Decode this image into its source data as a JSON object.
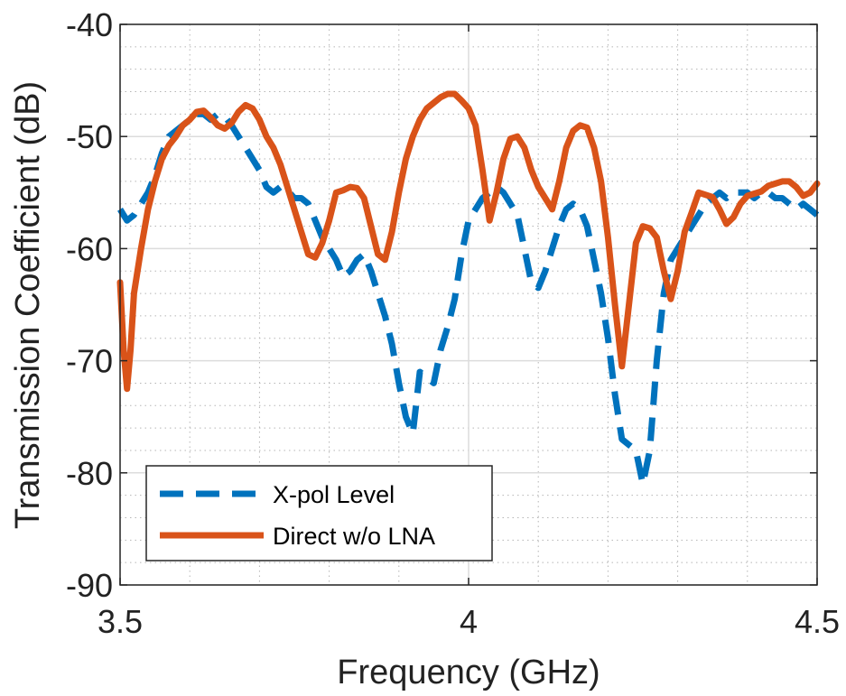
{
  "chart_data": {
    "type": "line",
    "title": "",
    "xlabel": "Frequency (GHz)",
    "ylabel": "Transmission Coefficient (dB)",
    "xlim": [
      3.5,
      4.5
    ],
    "ylim": [
      -90,
      -40
    ],
    "xticks": [
      3.5,
      4,
      4.5
    ],
    "xtick_labels": [
      "3.5",
      "4",
      "4.5"
    ],
    "yticks": [
      -90,
      -80,
      -70,
      -60,
      -50,
      -40
    ],
    "ytick_labels": [
      "-90",
      "-80",
      "-70",
      "-60",
      "-50",
      "-40"
    ],
    "grid": "major and minor",
    "legend_position": "bottom-left",
    "series": [
      {
        "name": "X-pol Level",
        "color": "#0072BD",
        "style": "dashed",
        "x": [
          3.5,
          3.51,
          3.52,
          3.53,
          3.54,
          3.55,
          3.56,
          3.57,
          3.58,
          3.59,
          3.6,
          3.61,
          3.62,
          3.63,
          3.64,
          3.65,
          3.66,
          3.67,
          3.68,
          3.69,
          3.7,
          3.71,
          3.72,
          3.73,
          3.74,
          3.75,
          3.76,
          3.77,
          3.78,
          3.79,
          3.8,
          3.81,
          3.82,
          3.83,
          3.84,
          3.85,
          3.86,
          3.87,
          3.88,
          3.89,
          3.9,
          3.91,
          3.92,
          3.93,
          3.94,
          3.95,
          3.96,
          3.97,
          3.98,
          3.99,
          4.0,
          4.01,
          4.02,
          4.03,
          4.04,
          4.05,
          4.06,
          4.07,
          4.08,
          4.09,
          4.1,
          4.11,
          4.12,
          4.13,
          4.14,
          4.15,
          4.16,
          4.17,
          4.18,
          4.19,
          4.2,
          4.21,
          4.22,
          4.23,
          4.24,
          4.25,
          4.26,
          4.27,
          4.28,
          4.29,
          4.3,
          4.31,
          4.32,
          4.33,
          4.34,
          4.35,
          4.36,
          4.37,
          4.38,
          4.39,
          4.4,
          4.41,
          4.42,
          4.43,
          4.44,
          4.45,
          4.46,
          4.47,
          4.48,
          4.49,
          4.5
        ],
        "y": [
          -56.5,
          -57.5,
          -57.0,
          -56.0,
          -55.0,
          -53.5,
          -51.5,
          -50.0,
          -49.5,
          -49.0,
          -48.5,
          -48.0,
          -48.0,
          -48.5,
          -48.0,
          -48.2,
          -49.0,
          -50.0,
          -51.0,
          -52.0,
          -53.0,
          -54.5,
          -55.0,
          -54.5,
          -54.8,
          -55.5,
          -55.5,
          -56.0,
          -57.5,
          -59.0,
          -60.0,
          -61.0,
          -62.5,
          -62.0,
          -61.0,
          -60.5,
          -62.0,
          -64.0,
          -66.0,
          -68.5,
          -72.0,
          -75.0,
          -76.5,
          -71.0,
          -71.5,
          -72.0,
          -69.0,
          -67.0,
          -64.5,
          -60.5,
          -57.5,
          -56.5,
          -55.5,
          -55.0,
          -54.5,
          -55.0,
          -56.0,
          -57.0,
          -60.0,
          -63.0,
          -63.5,
          -62.0,
          -60.0,
          -58.0,
          -56.5,
          -56.0,
          -56.5,
          -58.0,
          -61.0,
          -64.0,
          -68.0,
          -73.0,
          -77.0,
          -77.5,
          -78.0,
          -81.0,
          -78.0,
          -70.0,
          -64.0,
          -61.0,
          -60.0,
          -59.0,
          -58.0,
          -57.0,
          -56.0,
          -55.5,
          -55.0,
          -55.5,
          -55.0,
          -55.0,
          -55.0,
          -55.5,
          -55.0,
          -55.0,
          -55.5,
          -55.5,
          -56.0,
          -56.5,
          -56.0,
          -56.5,
          -57.0
        ]
      },
      {
        "name": "Direct w/o LNA",
        "color": "#D95319",
        "style": "solid",
        "x": [
          3.5,
          3.505,
          3.51,
          3.515,
          3.52,
          3.53,
          3.54,
          3.55,
          3.56,
          3.57,
          3.58,
          3.59,
          3.6,
          3.61,
          3.62,
          3.63,
          3.64,
          3.65,
          3.66,
          3.67,
          3.68,
          3.69,
          3.7,
          3.71,
          3.72,
          3.73,
          3.74,
          3.75,
          3.76,
          3.77,
          3.78,
          3.79,
          3.8,
          3.81,
          3.82,
          3.83,
          3.84,
          3.85,
          3.86,
          3.87,
          3.88,
          3.89,
          3.9,
          3.91,
          3.92,
          3.93,
          3.94,
          3.95,
          3.96,
          3.97,
          3.98,
          3.99,
          4.0,
          4.01,
          4.02,
          4.03,
          4.04,
          4.05,
          4.06,
          4.07,
          4.08,
          4.09,
          4.1,
          4.11,
          4.12,
          4.13,
          4.14,
          4.15,
          4.16,
          4.17,
          4.18,
          4.19,
          4.2,
          4.21,
          4.22,
          4.23,
          4.24,
          4.25,
          4.26,
          4.27,
          4.28,
          4.29,
          4.3,
          4.31,
          4.32,
          4.33,
          4.34,
          4.35,
          4.36,
          4.37,
          4.38,
          4.39,
          4.4,
          4.41,
          4.42,
          4.43,
          4.44,
          4.45,
          4.46,
          4.47,
          4.48,
          4.49,
          4.5
        ],
        "y": [
          -63.0,
          -69.0,
          -72.5,
          -69.0,
          -64.0,
          -60.0,
          -56.5,
          -54.0,
          -52.0,
          -50.8,
          -50.0,
          -49.0,
          -48.5,
          -47.8,
          -47.7,
          -48.3,
          -49.0,
          -49.3,
          -48.8,
          -47.8,
          -47.2,
          -47.5,
          -48.5,
          -50.0,
          -51.0,
          -52.5,
          -54.5,
          -56.5,
          -58.5,
          -60.5,
          -60.8,
          -59.5,
          -57.5,
          -55.0,
          -54.8,
          -54.5,
          -54.6,
          -55.5,
          -58.0,
          -60.5,
          -61.0,
          -58.5,
          -55.0,
          -52.0,
          -50.0,
          -48.5,
          -47.5,
          -47.0,
          -46.5,
          -46.2,
          -46.2,
          -46.8,
          -47.5,
          -49.0,
          -53.0,
          -57.5,
          -55.0,
          -52.0,
          -50.2,
          -50.0,
          -51.0,
          -53.0,
          -54.5,
          -55.5,
          -56.5,
          -54.0,
          -51.0,
          -49.5,
          -49.0,
          -49.2,
          -51.0,
          -54.0,
          -59.0,
          -65.0,
          -70.5,
          -65.0,
          -59.5,
          -58.0,
          -58.2,
          -59.0,
          -62.0,
          -64.5,
          -62.0,
          -58.5,
          -56.8,
          -55.0,
          -55.2,
          -55.4,
          -56.5,
          -57.8,
          -57.2,
          -56.0,
          -55.3,
          -55.1,
          -54.9,
          -54.4,
          -54.2,
          -54.0,
          -54.0,
          -54.5,
          -55.3,
          -55.0,
          -54.2
        ]
      }
    ]
  }
}
